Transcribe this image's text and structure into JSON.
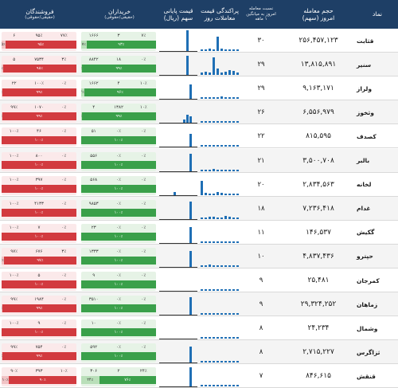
{
  "header": {
    "name": "نماد",
    "vol_title": "حجم معامله",
    "vol_sub": "امروز (سهم)",
    "ratio_sub1": "نسبت معامله",
    "ratio_sub2": "امروز به میانگین",
    "ratio_sub3": "۱ ماهه",
    "spark_title": "معاملات روز",
    "dist_title": "پراکندگی قیمت",
    "price_title": "قیمت پایانی",
    "price_sub": "سهم (ریال)",
    "buyers_title": "خریداران",
    "buyers_sub": "(حقیقی/حقوقی)",
    "sellers_title": "فروشندگان",
    "sellers_sub": "(حقیقی/حقوقی)"
  },
  "rows": [
    {
      "name": "قثابت",
      "volume": "۲۵۶,۴۵۷,۱۲۳",
      "ratio": "۳۰",
      "price": "۴,۳۳۰",
      "buy_t1": "۷٪",
      "buy_t2": "۳",
      "buy_t3": "۱۶۶۶",
      "buy_p1": "۹۳٪",
      "buy_p2": "۷٪",
      "sell_t1": "۷۷٪",
      "sell_t2": "۹۵٪",
      "sell_t3": "۶",
      "sell_p1": "۹۵٪",
      "sell_p2": "۵٪",
      "buy_frac": 0.93,
      "sell_frac": 0.95,
      "spark": [
        2,
        2,
        3,
        2,
        18,
        3,
        2,
        2,
        2,
        2
      ],
      "dist": [
        0,
        0,
        0,
        0,
        0,
        0,
        0,
        0,
        26,
        0,
        0
      ]
    },
    {
      "name": "سنیر",
      "volume": "۱۳,۸۱۵,۸۹۱",
      "ratio": "۲۹",
      "price": "۱۳۸,۳۸۰",
      "buy_t1": "۰٪",
      "buy_t2": "۱۸",
      "buy_t3": "۸۸۴۲",
      "buy_p1": "۹۹٪",
      "buy_p2": "۱٪",
      "sell_t1": "۳٪",
      "sell_t2": "۷۵۳۴",
      "sell_t3": "۵",
      "sell_p1": "۹۸٪",
      "sell_p2": "۲٪",
      "buy_frac": 0.99,
      "sell_frac": 0.98,
      "spark": [
        3,
        4,
        3,
        22,
        8,
        3,
        4,
        6,
        5,
        3
      ],
      "dist": [
        0,
        0,
        0,
        0,
        0,
        0,
        0,
        0,
        24,
        0,
        0
      ]
    },
    {
      "name": "ولراز",
      "volume": "۹,۱۶۳,۱۷۱",
      "ratio": "۲۹",
      "price": "۳۱,۲۴۲",
      "buy_t1": "۱۰٪",
      "buy_t2": "۴",
      "buy_t3": "۱۶۶۲",
      "buy_p1": "۹۶٪",
      "buy_p2": "۴٪",
      "sell_t1": "۰٪",
      "sell_t2": "۱۰۰٪",
      "sell_t3": "۲۲",
      "sell_p1": "۹۹٪",
      "sell_p2": "۱٪",
      "buy_frac": 0.96,
      "sell_frac": 0.99,
      "spark": [
        2,
        2,
        2,
        2,
        2,
        3,
        2,
        2,
        2,
        2
      ],
      "dist": [
        0,
        0,
        0,
        0,
        0,
        0,
        0,
        0,
        0,
        18,
        0
      ]
    },
    {
      "name": "وثخوز",
      "volume": "۶,۵۵۶,۹۷۹",
      "ratio": "۲۶",
      "price": "۵۶,۴۹۸",
      "buy_t1": "۱۰٪",
      "buy_t2": "۱۳۸۲",
      "buy_t3": "۴",
      "buy_p1": "۹۹٪",
      "buy_p2": "۱٪",
      "sell_t1": "۰٪",
      "sell_t2": "۱۰۷۰",
      "sell_t3": "۹۹٪",
      "sell_p1": "۹۹٪",
      "sell_p2": "۱٪",
      "buy_frac": 0.99,
      "sell_frac": 0.99,
      "spark": [
        2,
        2,
        2,
        2,
        2,
        2,
        2,
        2,
        2,
        2
      ],
      "dist": [
        0,
        0,
        0,
        0,
        0,
        0,
        0,
        4,
        10,
        8,
        0
      ]
    },
    {
      "name": "کصدف",
      "volume": "۸۱۵,۵۹۵",
      "ratio": "۲۲",
      "price": "۲۰,۵۰۰",
      "buy_t1": "۰٪",
      "buy_t2": "۰٪",
      "buy_t3": "۵۱",
      "buy_p1": "۱۰۰٪",
      "buy_p2": "۰٪",
      "sell_t1": "۰٪",
      "sell_t2": "۴۶",
      "sell_t3": "۱۰۰٪",
      "sell_p1": "۱۰۰٪",
      "sell_p2": "۰٪",
      "buy_frac": 1.0,
      "sell_frac": 1.0,
      "spark": [
        2,
        2,
        2,
        2,
        2,
        2,
        2,
        2,
        2,
        2
      ],
      "dist": [
        0,
        0,
        0,
        0,
        0,
        0,
        0,
        0,
        0,
        16,
        0
      ]
    },
    {
      "name": "بالبر",
      "volume": "۳,۵۰۰,۷۰۸",
      "ratio": "۲۱",
      "price": "۴۱,۵۴۰",
      "buy_t1": "۰٪",
      "buy_t2": "۰٪",
      "buy_t3": "۵۵۶",
      "buy_p1": "۱۰۰٪",
      "buy_p2": "۰٪",
      "sell_t1": "۰٪",
      "sell_t2": "۸۰۰",
      "sell_t3": "۱۰۰٪",
      "sell_p1": "۱۰۰٪",
      "sell_p2": "۰٪",
      "buy_frac": 1.0,
      "sell_frac": 1.0,
      "spark": [
        2,
        2,
        2,
        3,
        2,
        2,
        2,
        2,
        2,
        2
      ],
      "dist": [
        0,
        0,
        0,
        0,
        0,
        0,
        0,
        0,
        0,
        22,
        0
      ]
    },
    {
      "name": "لخانه",
      "volume": "۲,۸۳۴,۵۶۳",
      "ratio": "۲۰",
      "price": "۲۲,۶۶۷",
      "buy_t1": "۰٪",
      "buy_t2": "۰٪",
      "buy_t3": "۵۶۸",
      "buy_p1": "۱۰۰٪",
      "buy_p2": "۰٪",
      "sell_t1": "۰٪",
      "sell_t2": "۳۹۷",
      "sell_t3": "۱۰۰٪",
      "sell_p1": "۱۰۰٪",
      "sell_p2": "۰٪",
      "buy_frac": 1.0,
      "sell_frac": 1.0,
      "spark": [
        18,
        3,
        2,
        2,
        4,
        3,
        2,
        2,
        2,
        2
      ],
      "dist": [
        0,
        0,
        0,
        0,
        4,
        0,
        0,
        0,
        0,
        0,
        0
      ]
    },
    {
      "name": "غدام",
      "volume": "۷,۲۳۶,۴۱۸",
      "ratio": "۱۸",
      "price": "۲۸۹,۷۱۰",
      "buy_t1": "۰٪",
      "buy_t2": "۰٪",
      "buy_t3": "۹۸۵۳",
      "buy_p1": "۱۰۰٪",
      "buy_p2": "۰٪",
      "sell_t1": "۰٪",
      "sell_t2": "۴۱۳۳",
      "sell_t3": "۱۰۰٪",
      "sell_p1": "۱۰۰٪",
      "sell_p2": "۰٪",
      "buy_frac": 1.0,
      "sell_frac": 1.0,
      "spark": [
        2,
        2,
        3,
        3,
        2,
        2,
        4,
        3,
        2,
        2
      ],
      "dist": [
        0,
        0,
        0,
        0,
        0,
        0,
        0,
        0,
        0,
        22,
        0
      ]
    },
    {
      "name": "گکیش",
      "volume": "۱۴۶,۵۳۷",
      "ratio": "۱۱",
      "price": "۴۴,۳۵۲",
      "buy_t1": "۰٪",
      "buy_t2": "۰٪",
      "buy_t3": "۲۳",
      "buy_p1": "۱۰۰٪",
      "buy_p2": "۰٪",
      "sell_t1": "۰٪",
      "sell_t2": "۷",
      "sell_t3": "۱۰۰٪",
      "sell_p1": "۱۰۰٪",
      "sell_p2": "۰٪",
      "buy_frac": 1.0,
      "sell_frac": 1.0,
      "spark": [
        2,
        2,
        2,
        2,
        2,
        2,
        2,
        2,
        2,
        2
      ],
      "dist": [
        0,
        0,
        0,
        0,
        0,
        0,
        0,
        0,
        0,
        20,
        0
      ]
    },
    {
      "name": "حپترو",
      "volume": "۴,۸۳۷,۴۳۶",
      "ratio": "۱۰",
      "price": "۳۷,۴۱۰",
      "buy_t1": "۰٪",
      "buy_t2": "۰٪",
      "buy_t3": "۱۳۳۳",
      "buy_p1": "۱۰۰٪",
      "buy_p2": "۰٪",
      "sell_t1": "۳٪",
      "sell_t2": "۶۷۶",
      "sell_t3": "۹۷٪",
      "sell_p1": "۹۷٪",
      "sell_p2": "۳٪",
      "buy_frac": 1.0,
      "sell_frac": 0.97,
      "spark": [
        2,
        2,
        3,
        2,
        2,
        2,
        2,
        2,
        2,
        2
      ],
      "dist": [
        0,
        0,
        0,
        0,
        0,
        0,
        0,
        0,
        0,
        20,
        0
      ]
    },
    {
      "name": "کمرجان",
      "volume": "۲۵,۴۸۱",
      "ratio": "۹",
      "price": "۱۳۷,۶۸۶",
      "buy_t1": "۰٪",
      "buy_t2": "۰٪",
      "buy_t3": "۹",
      "buy_p1": "۱۰۰٪",
      "buy_p2": "۰٪",
      "sell_t1": "۰٪",
      "sell_t2": "۵",
      "sell_t3": "۱۰۰٪",
      "sell_p1": "۱۰۰٪",
      "sell_p2": "۰٪",
      "buy_frac": 1.0,
      "sell_frac": 1.0,
      "spark": [
        2,
        2,
        2,
        2,
        2,
        2,
        2,
        2,
        2,
        2
      ],
      "dist": [
        0,
        0,
        0,
        0,
        0,
        0,
        0,
        0,
        0,
        0,
        0
      ]
    },
    {
      "name": "زماهان",
      "volume": "۲۹,۳۲۴,۲۵۲",
      "ratio": "۹",
      "price": "۱۵,۸۹۲",
      "buy_t1": "۰٪",
      "buy_t2": "۰٪",
      "buy_t3": "۳۵۱۰",
      "buy_p1": "۱۰۰٪",
      "buy_p2": "۰٪",
      "sell_t1": "۰٪",
      "sell_t2": "۱۹۸۴",
      "sell_t3": "۹۹٪",
      "sell_p1": "۹۹٪",
      "sell_p2": "۱٪",
      "buy_frac": 1.0,
      "sell_frac": 0.99,
      "spark": [
        2,
        2,
        2,
        2,
        2,
        2,
        2,
        2,
        2,
        2
      ],
      "dist": [
        0,
        0,
        0,
        0,
        0,
        0,
        0,
        0,
        0,
        22,
        0
      ]
    },
    {
      "name": "وشمال",
      "volume": "۲۴,۲۳۴",
      "ratio": "۸",
      "price": "۸۵,۸۷۶",
      "buy_t1": "۰٪",
      "buy_t2": "۰٪",
      "buy_t3": "۱۰",
      "buy_p1": "۱۰۰٪",
      "buy_p2": "۰٪",
      "sell_t1": "۰٪",
      "sell_t2": "۹",
      "sell_t3": "۱۰۰٪",
      "sell_p1": "۱۰۰٪",
      "sell_p2": "۰٪",
      "buy_frac": 1.0,
      "sell_frac": 1.0,
      "spark": [
        2,
        2,
        2,
        2,
        2,
        2,
        2,
        2,
        2,
        2
      ],
      "dist": [
        0,
        0,
        0,
        0,
        0,
        0,
        0,
        0,
        0,
        0,
        0
      ]
    },
    {
      "name": "ثزاگرس",
      "volume": "۲,۷۱۵,۲۲۷",
      "ratio": "۸",
      "price": "۵۳,۱۲۷",
      "buy_t1": "۰٪",
      "buy_t2": "۰٪",
      "buy_t3": "۵۹۲",
      "buy_p1": "۱۰۰٪",
      "buy_p2": "۰٪",
      "sell_t1": "۰٪",
      "sell_t2": "۷۵۴",
      "sell_t3": "۹۹٪",
      "sell_p1": "۹۹٪",
      "sell_p2": "۱٪",
      "buy_frac": 1.0,
      "sell_frac": 0.99,
      "spark": [
        2,
        2,
        2,
        2,
        2,
        2,
        2,
        2,
        2,
        2
      ],
      "dist": [
        0,
        0,
        0,
        0,
        0,
        0,
        0,
        0,
        0,
        20,
        0
      ]
    },
    {
      "name": "قنقش",
      "volume": "۸۴۶,۶۱۵",
      "ratio": "۷",
      "price": "۶۲,۹۸۴",
      "buy_t1": "۲۴٪",
      "buy_t2": "۲",
      "buy_t3": "۳۰۶",
      "buy_p1": "۷۶٪",
      "buy_p2": "۲۴٪",
      "sell_t1": "۱۰٪",
      "sell_t2": "۳۹۳",
      "sell_t3": "۹۰٪",
      "sell_p1": "۹۰٪",
      "sell_p2": "۱۰٪",
      "buy_frac": 0.76,
      "sell_frac": 0.9,
      "spark": [
        2,
        2,
        2,
        2,
        2,
        2,
        2,
        2,
        2,
        2
      ],
      "dist": [
        0,
        0,
        0,
        0,
        0,
        0,
        0,
        0,
        0,
        24,
        0
      ]
    }
  ]
}
